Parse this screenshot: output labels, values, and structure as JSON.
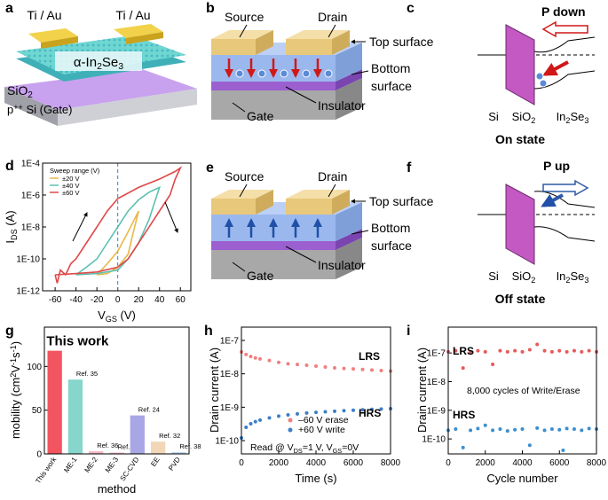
{
  "figure": {
    "a": {
      "label": "a",
      "electrode_left": "Ti / Au",
      "electrode_right": "Ti / Au",
      "channel": [
        "α-In",
        {
          "sub": "2"
        },
        "Se",
        {
          "sub": "3"
        }
      ],
      "oxide": [
        "SiO",
        {
          "sub": "2"
        }
      ],
      "substrate": [
        "p",
        {
          "sup": "++"
        },
        " Si (Gate)"
      ]
    },
    "b": {
      "label": "b",
      "source": "Source",
      "drain": "Drain",
      "top_surface": "Top surface",
      "bottom_surface": [
        "Bottom",
        "surface"
      ],
      "insulator": "Insulator",
      "gate": "Gate"
    },
    "c": {
      "label": "c",
      "polarization": "P down",
      "left": "Si",
      "middle": [
        "SiO",
        {
          "sub": "2"
        }
      ],
      "right": [
        "In",
        {
          "sub": "2"
        },
        "Se",
        {
          "sub": "3"
        }
      ],
      "state": "On state"
    },
    "e": {
      "label": "e",
      "source": "Source",
      "drain": "Drain",
      "top_surface": "Top surface",
      "bottom_surface": [
        "Bottom",
        "surface"
      ],
      "insulator": "Insulator",
      "gate": "Gate"
    },
    "f": {
      "label": "f",
      "polarization": "P up",
      "left": "Si",
      "middle": [
        "SiO",
        {
          "sub": "2"
        }
      ],
      "right": [
        "In",
        {
          "sub": "2"
        },
        "Se",
        {
          "sub": "3"
        }
      ],
      "state": "Off state"
    }
  },
  "chart_data": [
    {
      "label": "d",
      "type": "line",
      "ylabel": [
        "I",
        {
          "sub": "DS"
        },
        " (A)"
      ],
      "xlabel": [
        "V",
        {
          "sub": "GS"
        },
        " (V)"
      ],
      "xlim": [
        -72,
        70
      ],
      "xticks": [
        -60,
        -40,
        -20,
        0,
        20,
        40,
        60
      ],
      "yscale": "log",
      "ylim": [
        1e-12,
        0.0001
      ],
      "yticks": [
        {
          "value": 1e-12,
          "label": "1E-12"
        },
        {
          "value": 1e-10,
          "label": "1E-10"
        },
        {
          "value": 1e-08,
          "label": "1E-8"
        },
        {
          "value": 1e-06,
          "label": "1E-6"
        },
        {
          "value": 0.0001,
          "label": "1E-4"
        }
      ],
      "reference_x": 0,
      "legend": "upper left",
      "legend_title": "Sweep range (V)",
      "series": [
        {
          "name": "±20 V",
          "color": "#e8b84a",
          "x": [
            -20,
            -10,
            0,
            10,
            20,
            15,
            10,
            0,
            -10,
            -20
          ],
          "values": [
            1e-11,
            5e-11,
            3e-10,
            5e-09,
            1e-07,
            5e-09,
            2e-10,
            3e-11,
            1.2e-11,
            1e-11
          ]
        },
        {
          "name": "±40 V",
          "color": "#5cc0b0",
          "x": [
            -40,
            -30,
            -20,
            -10,
            0,
            10,
            20,
            30,
            40,
            35,
            30,
            20,
            10,
            0,
            -20,
            -40
          ],
          "values": [
            1e-11,
            3e-11,
            1e-10,
            1e-09,
            1e-08,
            1e-07,
            5e-07,
            1.5e-06,
            3e-06,
            3e-07,
            3e-08,
            1e-09,
            1e-10,
            2e-11,
            1.2e-11,
            1e-11
          ]
        },
        {
          "name": "±60 V",
          "color": "#e04848",
          "x": [
            -60,
            -58,
            -55,
            -50,
            -45,
            -40,
            -30,
            -20,
            -10,
            0,
            20,
            40,
            55,
            60,
            55,
            50,
            40,
            30,
            20,
            10,
            0,
            -20,
            -40,
            -60
          ],
          "values": [
            1e-11,
            3e-12,
            2e-11,
            1e-11,
            5e-11,
            1e-10,
            1e-09,
            1e-08,
            1e-07,
            6e-07,
            3e-06,
            1e-05,
            3e-05,
            5e-05,
            1e-05,
            1e-06,
            1e-07,
            1e-08,
            1e-09,
            1e-10,
            3e-11,
            1.5e-11,
            1.2e-11,
            1e-11
          ]
        }
      ]
    },
    {
      "label": "g",
      "type": "bar",
      "ylabel": [
        "mobility (cm",
        {
          "sup": "2"
        },
        "V",
        {
          "sup": "-1"
        },
        "s",
        {
          "sup": "-1"
        },
        ")"
      ],
      "xlabel": "method",
      "categories": [
        "This work",
        "ME-1",
        "ME-2",
        "ME-3",
        "SC-CVD",
        "EE",
        "PVD"
      ],
      "values": [
        118,
        85,
        3,
        1.5,
        44,
        14,
        2
      ],
      "colors": [
        "#f25560",
        "#86d6cc",
        "#f4b6c4",
        "#f4b6c4",
        "#a9a6e6",
        "#f2d6b8",
        "#b8d6f2"
      ],
      "annotations": [
        "This work",
        "Ref. 35",
        "Ref. 36",
        "Ref. 37",
        "Ref. 24",
        "Ref. 32",
        "Ref. 38"
      ],
      "ylim": [
        0,
        145
      ],
      "yticks": [
        0,
        50,
        100
      ]
    },
    {
      "label": "h",
      "type": "scatter",
      "xlabel": "Time (s)",
      "ylabel": "Drain current (A)",
      "xlim": [
        0,
        8000
      ],
      "xticks": [
        0,
        2000,
        4000,
        6000,
        8000
      ],
      "yscale": "log",
      "ylim": [
        4e-11,
        2.5e-07
      ],
      "yticks": [
        {
          "value": 1e-10,
          "label": "1E-10"
        },
        {
          "value": 1e-09,
          "label": "1E-9"
        },
        {
          "value": 1e-08,
          "label": "1E-8"
        },
        {
          "value": 1e-07,
          "label": "1E-7"
        }
      ],
      "legend": "lower center",
      "series": [
        {
          "name": "–60 V erase",
          "color": "#f08080",
          "x": [
            0,
            250,
            500,
            750,
            1000,
            1500,
            2000,
            2500,
            3000,
            3500,
            4000,
            4500,
            5000,
            5500,
            6000,
            6500,
            7000,
            7500,
            8000
          ],
          "values": [
            4.5e-08,
            3.8e-08,
            3.3e-08,
            3e-08,
            2.8e-08,
            2.5e-08,
            2.2e-08,
            2e-08,
            1.9e-08,
            1.8e-08,
            1.7e-08,
            1.6e-08,
            1.5e-08,
            1.45e-08,
            1.4e-08,
            1.35e-08,
            1.3e-08,
            1.25e-08,
            1.2e-08
          ]
        },
        {
          "name": "+60 V write",
          "color": "#3a7fc8",
          "x": [
            0,
            250,
            500,
            750,
            1000,
            1500,
            2000,
            2500,
            3000,
            3500,
            4000,
            4500,
            5000,
            5500,
            6000,
            6500,
            7000,
            7500,
            8000
          ],
          "values": [
            1.2e-10,
            2.5e-10,
            3.2e-10,
            3.7e-10,
            4.1e-10,
            4.8e-10,
            5.4e-10,
            5.9e-10,
            6.3e-10,
            6.7e-10,
            7e-10,
            7.3e-10,
            7.6e-10,
            7.9e-10,
            8.1e-10,
            8.4e-10,
            8.6e-10,
            8.8e-10,
            9e-10
          ]
        }
      ],
      "annotations": [
        "LRS",
        "HRS",
        [
          "Read @ V",
          {
            "sub": "DS"
          },
          "=1 V, V",
          {
            "sub": "GS"
          },
          "=0V"
        ]
      ]
    },
    {
      "label": "i",
      "type": "scatter",
      "xlabel": "Cycle number",
      "ylabel": "Drain current (A)",
      "xlim": [
        0,
        8000
      ],
      "xticks": [
        0,
        2000,
        4000,
        6000,
        8000
      ],
      "yscale": "log",
      "ylim": [
        3e-11,
        8e-07
      ],
      "yticks": [
        {
          "value": 1e-10,
          "label": "1E-10"
        },
        {
          "value": 1e-09,
          "label": "1E-9"
        },
        {
          "value": 1e-08,
          "label": "1E-8"
        },
        {
          "value": 1e-07,
          "label": "1E-7"
        }
      ],
      "series": [
        {
          "name": "LRS",
          "color": "#e85a5a",
          "x": [
            0,
            400,
            800,
            1200,
            1600,
            2000,
            2400,
            2800,
            3200,
            3600,
            4000,
            4400,
            4800,
            5200,
            5600,
            6000,
            6400,
            6800,
            7200,
            7600,
            8000
          ],
          "values": [
            1.1e-07,
            1.2e-07,
            3e-08,
            1.1e-07,
            1.2e-07,
            1.1e-07,
            4e-08,
            1.2e-07,
            1.1e-07,
            1.2e-07,
            1.1e-07,
            1.3e-07,
            2e-07,
            1.2e-07,
            1.1e-07,
            1.2e-07,
            1.1e-07,
            1.2e-07,
            1.1e-07,
            1.2e-07,
            1.1e-07
          ]
        },
        {
          "name": "HRS",
          "color": "#3a8fd0",
          "x": [
            0,
            400,
            800,
            1200,
            1600,
            2000,
            2400,
            2800,
            3200,
            3600,
            4000,
            4400,
            4800,
            5200,
            5600,
            6000,
            6200,
            6400,
            6800,
            7200,
            7600,
            8000
          ],
          "values": [
            2e-10,
            2.2e-10,
            5e-11,
            2e-10,
            2.3e-10,
            3e-10,
            2e-10,
            2.2e-10,
            1.9e-10,
            2.1e-10,
            2.2e-10,
            6e-11,
            2.4e-10,
            2e-10,
            2.2e-10,
            2.1e-10,
            4e-11,
            2.3e-10,
            2.2e-10,
            2e-10,
            2.3e-10,
            2.2e-10
          ]
        }
      ],
      "annotations": [
        "LRS",
        "HRS",
        "8,000 cycles of Write/Erase"
      ]
    }
  ]
}
